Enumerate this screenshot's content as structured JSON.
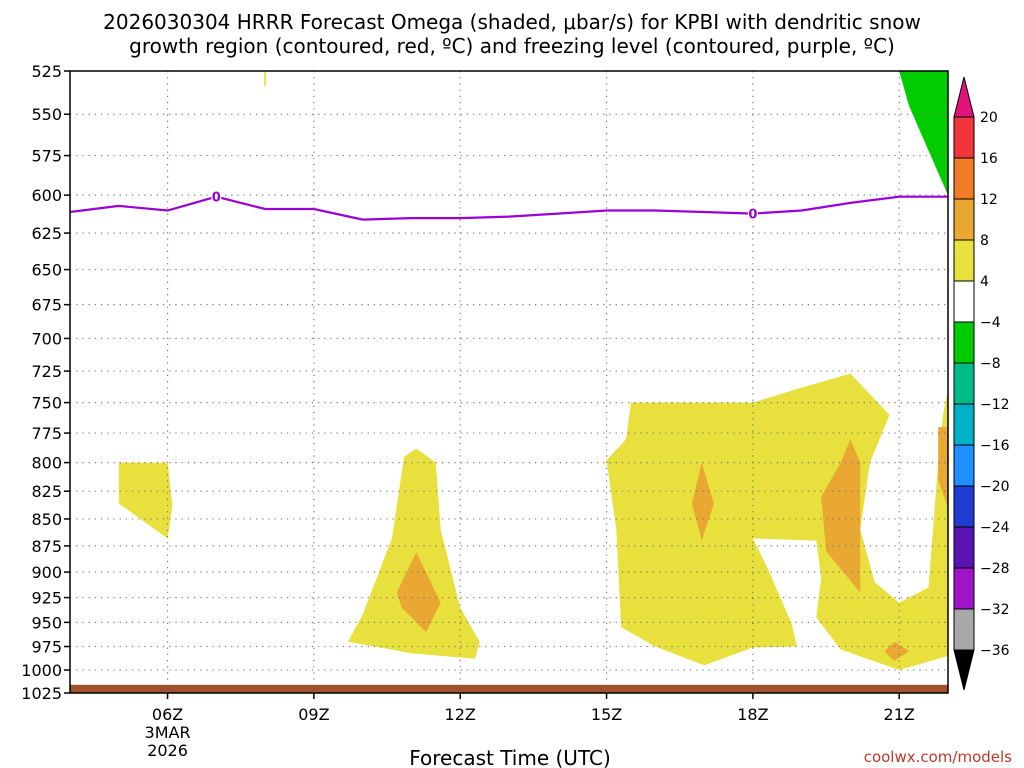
{
  "chart_data": {
    "type": "heatmap",
    "title_lines": [
      "2026030304 HRRR Forecast Omega (shaded, μbar/s) for KPBI with dendritic snow",
      "growth region (contoured, red, ºC) and freezing level (contoured, purple, ºC)"
    ],
    "xlabel": "Forecast Time (UTC)",
    "ylabel": "",
    "x_range_hours": [
      4,
      22
    ],
    "x_ticks": [
      {
        "hour": 6,
        "label": "06Z",
        "sub": [
          "3MAR",
          "2026"
        ]
      },
      {
        "hour": 9,
        "label": "09Z",
        "sub": []
      },
      {
        "hour": 12,
        "label": "12Z",
        "sub": []
      },
      {
        "hour": 15,
        "label": "15Z",
        "sub": []
      },
      {
        "hour": 18,
        "label": "18Z",
        "sub": []
      },
      {
        "hour": 21,
        "label": "21Z",
        "sub": []
      }
    ],
    "y_axis": {
      "scale": "pressure",
      "range_mb": [
        1025,
        525
      ],
      "ticks": [
        525,
        550,
        575,
        600,
        625,
        650,
        675,
        700,
        725,
        750,
        775,
        800,
        825,
        850,
        875,
        900,
        925,
        950,
        975,
        1000,
        1025
      ]
    },
    "grid": true,
    "colorbar": {
      "bins": [
        {
          "range": [
            20,
            24
          ],
          "color": "#e0147a"
        },
        {
          "range": [
            16,
            20
          ],
          "color": "#f0363c"
        },
        {
          "range": [
            12,
            16
          ],
          "color": "#f07c28"
        },
        {
          "range": [
            8,
            12
          ],
          "color": "#e8a832"
        },
        {
          "range": [
            4,
            8
          ],
          "color": "#e8e03c"
        },
        {
          "range": [
            -4,
            4
          ],
          "color": "#ffffff"
        },
        {
          "range": [
            -8,
            -4
          ],
          "color": "#00cc00"
        },
        {
          "range": [
            -12,
            -8
          ],
          "color": "#00bb88"
        },
        {
          "range": [
            -16,
            -12
          ],
          "color": "#00b0c8"
        },
        {
          "range": [
            -20,
            -16
          ],
          "color": "#1e90ff"
        },
        {
          "range": [
            -24,
            -20
          ],
          "color": "#1e3cd2"
        },
        {
          "range": [
            -28,
            -24
          ],
          "color": "#5a14b4"
        },
        {
          "range": [
            -32,
            -28
          ],
          "color": "#a014c8"
        },
        {
          "range": [
            -36,
            -32
          ],
          "color": "#a8a8a8"
        },
        {
          "range": [
            -40,
            -36
          ],
          "color": "#000000"
        }
      ],
      "tick_labels": [
        "20",
        "16",
        "12",
        "8",
        "4",
        "−4",
        "−8",
        "−12",
        "−16",
        "−20",
        "−24",
        "−28",
        "−32",
        "−36"
      ]
    },
    "freezing_level": {
      "color": "#9b00d6",
      "contour_label": "0",
      "label_points": [
        [
          7,
          601
        ],
        [
          18,
          612
        ]
      ],
      "points": [
        [
          4,
          611
        ],
        [
          5,
          607
        ],
        [
          6,
          610
        ],
        [
          7,
          601
        ],
        [
          8,
          609
        ],
        [
          9,
          609
        ],
        [
          10,
          616
        ],
        [
          11,
          615
        ],
        [
          12,
          615
        ],
        [
          13,
          614
        ],
        [
          14,
          612
        ],
        [
          15,
          610
        ],
        [
          16,
          610
        ],
        [
          17,
          611
        ],
        [
          18,
          612
        ],
        [
          19,
          610
        ],
        [
          20,
          605
        ],
        [
          21,
          601
        ],
        [
          22,
          601
        ]
      ]
    },
    "shaded_regions": [
      {
        "color": "#e8e03c",
        "points": [
          [
            5,
            800
          ],
          [
            6,
            800
          ],
          [
            6.1,
            838
          ],
          [
            6,
            868
          ],
          [
            5,
            836
          ]
        ]
      },
      {
        "color": "#e8e03c",
        "points": [
          [
            10.85,
            795
          ],
          [
            11.1,
            788
          ],
          [
            11.5,
            800
          ],
          [
            11.6,
            860
          ],
          [
            12,
            935
          ],
          [
            12.4,
            970
          ],
          [
            12.3,
            988
          ],
          [
            11,
            982
          ],
          [
            9.7,
            970
          ],
          [
            10,
            942
          ],
          [
            10.6,
            868
          ]
        ]
      },
      {
        "color": "#e8a832",
        "points": [
          [
            11.1,
            881
          ],
          [
            11.6,
            930
          ],
          [
            11.3,
            960
          ],
          [
            10.8,
            935
          ],
          [
            10.7,
            920
          ]
        ]
      },
      {
        "color": "#e8e03c",
        "points": [
          [
            15,
            798
          ],
          [
            15.4,
            780
          ],
          [
            15.5,
            750
          ],
          [
            17,
            750
          ],
          [
            18,
            750
          ],
          [
            19,
            738
          ],
          [
            20,
            727
          ],
          [
            20.8,
            760
          ],
          [
            20.4,
            800
          ],
          [
            20.2,
            860
          ],
          [
            20.5,
            910
          ],
          [
            21,
            930
          ],
          [
            21.6,
            915
          ],
          [
            21.8,
            800
          ],
          [
            21.9,
            760
          ],
          [
            22,
            740
          ],
          [
            22,
            985
          ],
          [
            21,
            1000
          ],
          [
            19.8,
            978
          ],
          [
            19.3,
            945
          ],
          [
            19.4,
            905
          ],
          [
            19.3,
            870
          ],
          [
            18,
            868
          ],
          [
            18.3,
            896
          ],
          [
            18.8,
            952
          ],
          [
            18.9,
            975
          ],
          [
            18,
            976
          ],
          [
            17,
            995
          ],
          [
            16,
            975
          ],
          [
            15.3,
            955
          ],
          [
            15.2,
            860
          ]
        ]
      },
      {
        "color": "#e8a832",
        "points": [
          [
            16.95,
            800
          ],
          [
            17.2,
            836
          ],
          [
            16.95,
            870
          ],
          [
            16.75,
            836
          ]
        ]
      },
      {
        "color": "#e8a832",
        "points": [
          [
            19.8,
            800
          ],
          [
            20,
            780
          ],
          [
            20.2,
            800
          ],
          [
            20.2,
            920
          ],
          [
            19.5,
            880
          ],
          [
            19.4,
            830
          ]
        ]
      },
      {
        "color": "#e8a832",
        "points": [
          [
            21.8,
            770
          ],
          [
            22,
            770
          ],
          [
            22,
            840
          ],
          [
            21.8,
            815
          ]
        ]
      },
      {
        "color": "#e8a832",
        "points": [
          [
            20.9,
            970
          ],
          [
            21.2,
            980
          ],
          [
            20.9,
            990
          ],
          [
            20.7,
            980
          ]
        ]
      },
      {
        "color": "#00cc00",
        "points": [
          [
            21,
            525
          ],
          [
            22,
            525
          ],
          [
            22,
            600
          ],
          [
            21.2,
            545
          ]
        ]
      }
    ],
    "surface_band": {
      "color": "#a0522d",
      "top_mb": 1016
    },
    "small_mark": {
      "hour": 8,
      "mb_top": 525,
      "mb_bottom": 530,
      "color": "#e8e03c"
    }
  },
  "credit": "coolwx.com/models"
}
